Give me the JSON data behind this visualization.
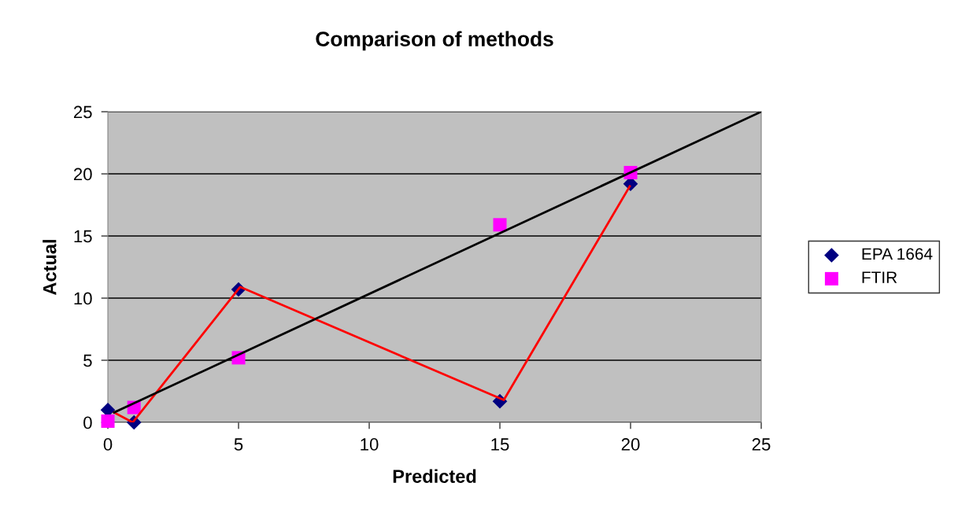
{
  "chart_data": {
    "type": "scatter",
    "title": "Comparison of methods",
    "xlabel": "Predicted",
    "ylabel": "Actual",
    "xlim": [
      0,
      25
    ],
    "xticks": [
      0,
      5,
      10,
      15,
      20,
      25
    ],
    "ylim": [
      0,
      25
    ],
    "yticks": [
      0,
      5,
      10,
      15,
      20,
      25
    ],
    "grid": "y",
    "legend": "right",
    "series": [
      {
        "type": "line",
        "color": "#ff0000",
        "x": [
          0.24,
          0.95,
          5.06,
          15.15,
          19.97
        ],
        "values": [
          0.8,
          0,
          10.9,
          1.8,
          19.0
        ],
        "marker": "none"
      },
      {
        "type": "line",
        "color": "#000000",
        "x": [
          0.24,
          25
        ],
        "values": [
          0.8,
          25
        ],
        "marker": "none"
      },
      {
        "name": "EPA 1664",
        "color": "#000080",
        "marker": "diamond",
        "x": [
          0,
          1,
          5,
          15,
          20
        ],
        "values": [
          1.0,
          0,
          10.7,
          1.7,
          19.2
        ]
      },
      {
        "name": "FTIR",
        "color": "#ff00ff",
        "marker": "square",
        "x": [
          0,
          1,
          5,
          15,
          20
        ],
        "values": [
          0.1,
          1.2,
          5.2,
          15.9,
          20.1
        ]
      }
    ]
  }
}
